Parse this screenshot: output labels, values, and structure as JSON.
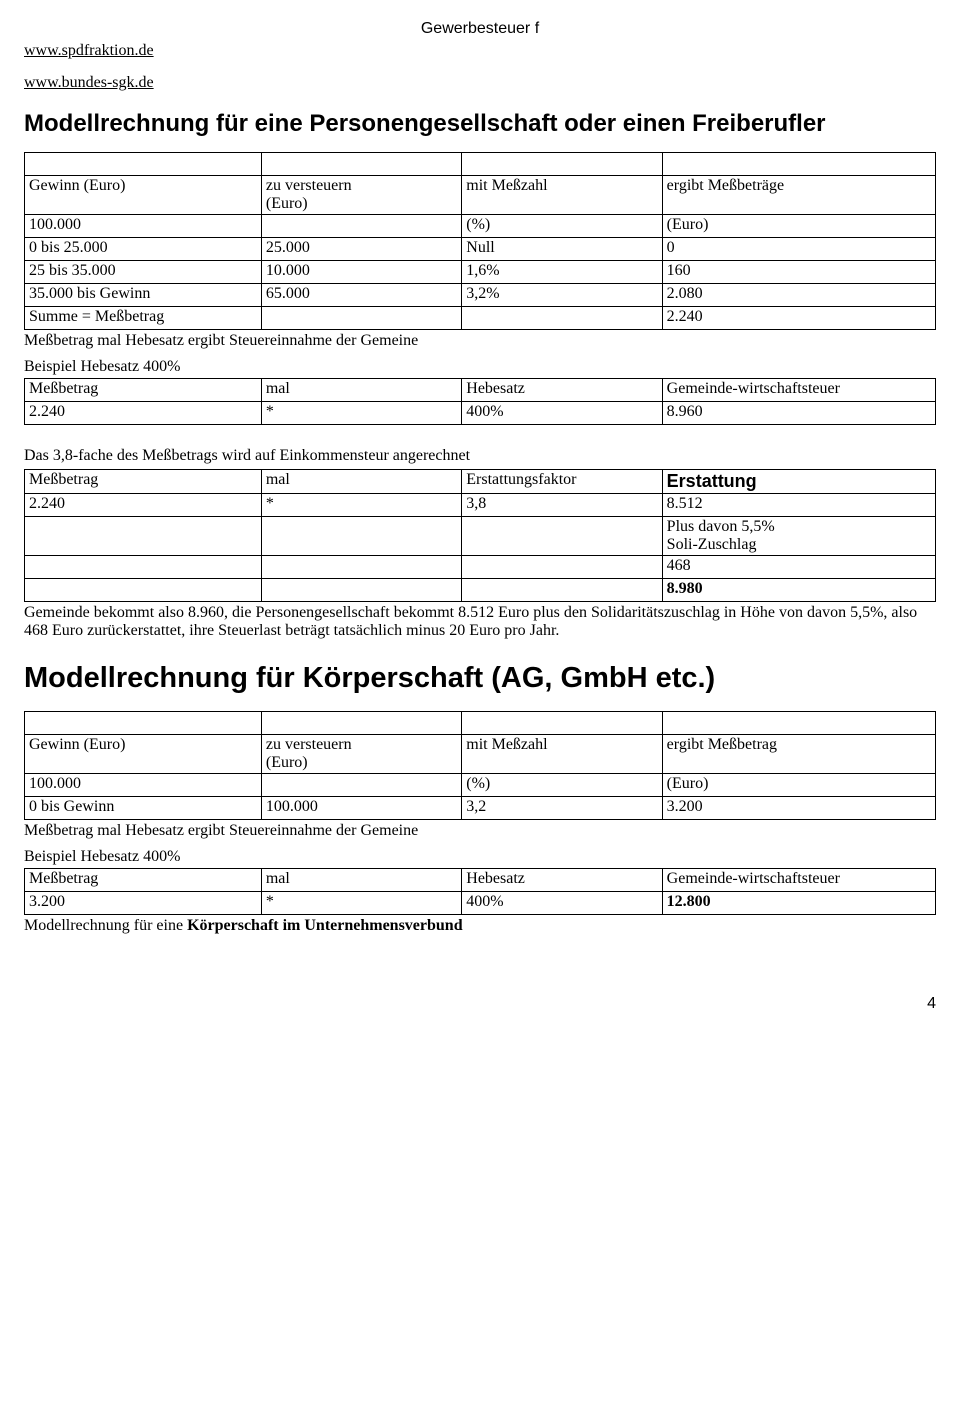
{
  "header": {
    "title": "Gewerbesteuer f"
  },
  "links": {
    "a": "www.spdfraktion.de",
    "b": "www.bundes-sgk.de"
  },
  "h1": "Modellrechnung für eine Personengesellschaft oder einen Freiberufler",
  "t1": {
    "h": {
      "c0": "Gewinn (Euro)",
      "c1a": "zu versteuern",
      "c1b": "(Euro)",
      "c2": "mit Meßzahl",
      "c3": "ergibt Meßbeträge"
    },
    "r0": {
      "c0": "100.000",
      "c2": "(%)",
      "c3": "(Euro)"
    },
    "r1": {
      "c0": "0 bis 25.000",
      "c1": "25.000",
      "c2": "Null",
      "c3": "0"
    },
    "r2": {
      "c0": "25 bis 35.000",
      "c1": "10.000",
      "c2": "1,6%",
      "c3": "160"
    },
    "r3": {
      "c0": "35.000 bis Gewinn",
      "c1": "65.000",
      "c2": "3,2%",
      "c3": "2.080"
    },
    "r4": {
      "c0": "Summe = Meßbetrag",
      "c3": "2.240"
    }
  },
  "note1": "Meßbetrag mal Hebesatz ergibt Steuereinnahme der Gemeine",
  "sec1": "Beispiel Hebesatz 400%",
  "t2": {
    "h": {
      "c0": "Meßbetrag",
      "c1": "mal",
      "c2": "Hebesatz",
      "c3": "Gemeinde-wirtschaftsteuer"
    },
    "r1": {
      "c0": "2.240",
      "c1": "*",
      "c2": "400%",
      "c3": "8.960"
    }
  },
  "note2": "Das 3,8-fache des Meßbetrags wird auf Einkommensteur angerechnet",
  "t3": {
    "h": {
      "c0": "Meßbetrag",
      "c1": "mal",
      "c2": "Erstattungsfaktor",
      "c3": "Erstattung"
    },
    "r1": {
      "c0": "2.240",
      "c1": "*",
      "c2": "3,8",
      "c3": "8.512"
    },
    "r2a": "Plus davon 5,5%",
    "r2b": "Soli-Zuschlag",
    "r3": "468",
    "r4": "8.980"
  },
  "para1": " Gemeinde bekommt also 8.960, die Personengesellschaft bekommt 8.512 Euro plus den Solidaritätszuschlag in Höhe von davon 5,5%, also 468 Euro zurückerstattet, ihre Steuerlast beträgt tatsächlich minus 20 Euro pro Jahr.",
  "h2": "Modellrechnung für Körperschaft (AG, GmbH etc.)",
  "t4": {
    "h": {
      "c0": "Gewinn (Euro)",
      "c1a": "zu versteuern",
      "c1b": "(Euro)",
      "c2": "mit Meßzahl",
      "c3": "ergibt Meßbetrag"
    },
    "r0": {
      "c0": "100.000",
      "c2": "(%)",
      "c3": "(Euro)"
    },
    "r1": {
      "c0": "0 bis Gewinn",
      "c1": "100.000",
      "c2": "3,2",
      "c3": "3.200"
    }
  },
  "note3": "Meßbetrag mal Hebesatz ergibt Steuereinnahme der Gemeine",
  "sec2": "Beispiel Hebesatz 400%",
  "t5": {
    "h": {
      "c0": "Meßbetrag",
      "c1": "mal",
      "c2": "Hebesatz",
      "c3": "Gemeinde-wirtschaftsteuer"
    },
    "r1": {
      "c0": "3.200",
      "c1": "*",
      "c2": "400%",
      "c3": "12.800"
    }
  },
  "note4a": "Modellrechnung für eine ",
  "note4b": "Körperschaft im Unternehmensverbund",
  "pagenum": "4",
  "cols": {
    "c0": "26%",
    "c1": "22%",
    "c2": "22%",
    "c3": "30%"
  }
}
